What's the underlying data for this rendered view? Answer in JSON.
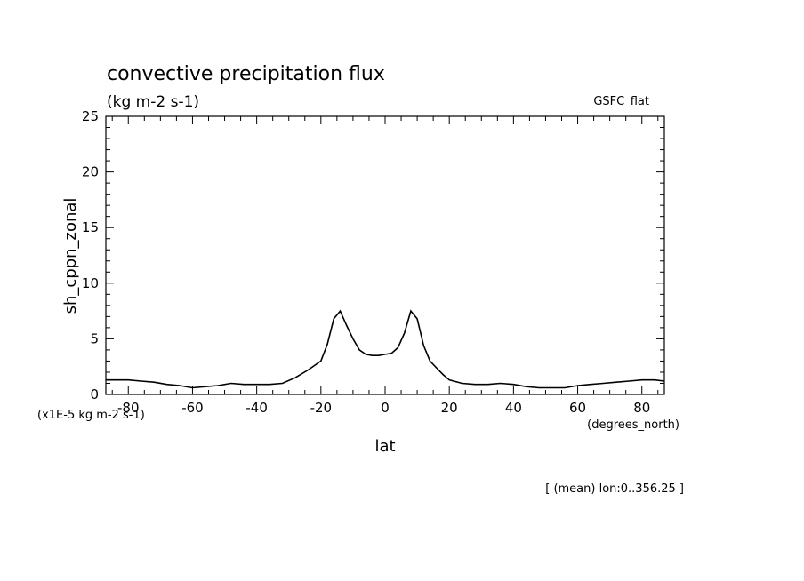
{
  "chart_data": {
    "type": "line",
    "title": "convective precipitation flux",
    "units_label": "(kg m-2 s-1)",
    "model_label": "GSFC_flat",
    "xlabel": "lat",
    "xunits": "(degrees_north)",
    "ylabel": "sh_cppn_zonal",
    "yscale_note": "(x1E-5 kg m-2 s-1)",
    "footer": "[ (mean) lon:0..356.25 ]",
    "xlim": [
      -87,
      87
    ],
    "ylim": [
      0,
      25
    ],
    "x_ticks": [
      -80,
      -60,
      -40,
      -20,
      0,
      20,
      40,
      60,
      80
    ],
    "y_ticks": [
      0,
      5,
      10,
      15,
      20,
      25
    ],
    "x_tick_labels": [
      "-80",
      "-60",
      "-40",
      "-20",
      "0",
      "20",
      "40",
      "60",
      "80"
    ],
    "y_tick_labels": [
      "0",
      "5",
      "10",
      "15",
      "20",
      "25"
    ],
    "grid": false,
    "series": [
      {
        "x": [
          -87,
          -84,
          -80,
          -76,
          -72,
          -68,
          -64,
          -60,
          -56,
          -52,
          -48,
          -44,
          -40,
          -36,
          -32,
          -28,
          -24,
          -20,
          -18,
          -16,
          -14,
          -12,
          -10,
          -8,
          -6,
          -4,
          -2,
          0,
          2,
          4,
          6,
          8,
          10,
          12,
          14,
          16,
          18,
          20,
          24,
          28,
          32,
          36,
          40,
          44,
          48,
          52,
          56,
          60,
          64,
          68,
          72,
          76,
          80,
          84,
          87
        ],
        "y": [
          1.3,
          1.3,
          1.3,
          1.2,
          1.1,
          0.9,
          0.8,
          0.6,
          0.7,
          0.8,
          1.0,
          0.9,
          0.9,
          0.9,
          1.0,
          1.5,
          2.2,
          3.0,
          4.5,
          6.8,
          7.5,
          6.2,
          5.0,
          4.0,
          3.6,
          3.5,
          3.5,
          3.6,
          3.7,
          4.2,
          5.5,
          7.5,
          6.8,
          4.4,
          3.0,
          2.4,
          1.8,
          1.3,
          1.0,
          0.9,
          0.9,
          1.0,
          0.9,
          0.7,
          0.6,
          0.6,
          0.6,
          0.8,
          0.9,
          1.0,
          1.1,
          1.2,
          1.3,
          1.3,
          1.2
        ]
      }
    ]
  }
}
